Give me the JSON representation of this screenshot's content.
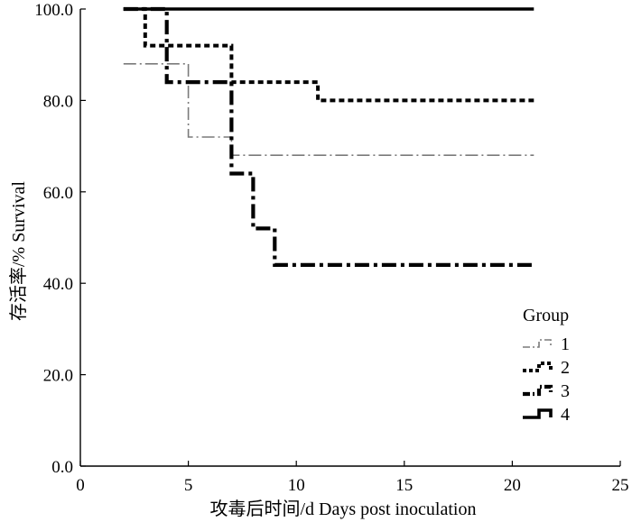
{
  "chart_data": {
    "type": "line",
    "title": "",
    "xlabel": "攻毒后时间/d  Days post inoculation",
    "ylabel": "存活率/%  Survival",
    "xlim": [
      0,
      25
    ],
    "ylim": [
      0,
      100
    ],
    "xticks": [
      0,
      5,
      10,
      15,
      20,
      25
    ],
    "xtick_labels": [
      "0",
      "5",
      "10",
      "15",
      "20",
      "25"
    ],
    "yticks": [
      0,
      20,
      40,
      60,
      80,
      100
    ],
    "ytick_labels": [
      "0.0",
      "20.0",
      "40.0",
      "60.0",
      "80.0",
      "100.0"
    ],
    "grid": false,
    "legend": {
      "title": "Group",
      "position": "right"
    },
    "series": [
      {
        "name": "1",
        "color": "#7a7a7a",
        "dash": "dash-dot-thin",
        "step_points": [
          [
            2,
            88
          ],
          [
            5,
            88
          ],
          [
            5,
            72
          ],
          [
            7,
            72
          ],
          [
            7,
            68
          ],
          [
            21,
            68
          ]
        ]
      },
      {
        "name": "2",
        "color": "#000000",
        "dash": "dashed",
        "step_points": [
          [
            2,
            100
          ],
          [
            3,
            100
          ],
          [
            3,
            92
          ],
          [
            7,
            92
          ],
          [
            7,
            84
          ],
          [
            11,
            84
          ],
          [
            11,
            80
          ],
          [
            21,
            80
          ]
        ]
      },
      {
        "name": "3",
        "color": "#000000",
        "dash": "dash-dot-thick",
        "step_points": [
          [
            2,
            100
          ],
          [
            4,
            100
          ],
          [
            4,
            84
          ],
          [
            7,
            84
          ],
          [
            7,
            64
          ],
          [
            8,
            64
          ],
          [
            8,
            52
          ],
          [
            9,
            52
          ],
          [
            9,
            44
          ],
          [
            21,
            44
          ]
        ]
      },
      {
        "name": "4",
        "color": "#000000",
        "dash": "solid",
        "step_points": [
          [
            2,
            100
          ],
          [
            21,
            100
          ]
        ]
      }
    ]
  }
}
